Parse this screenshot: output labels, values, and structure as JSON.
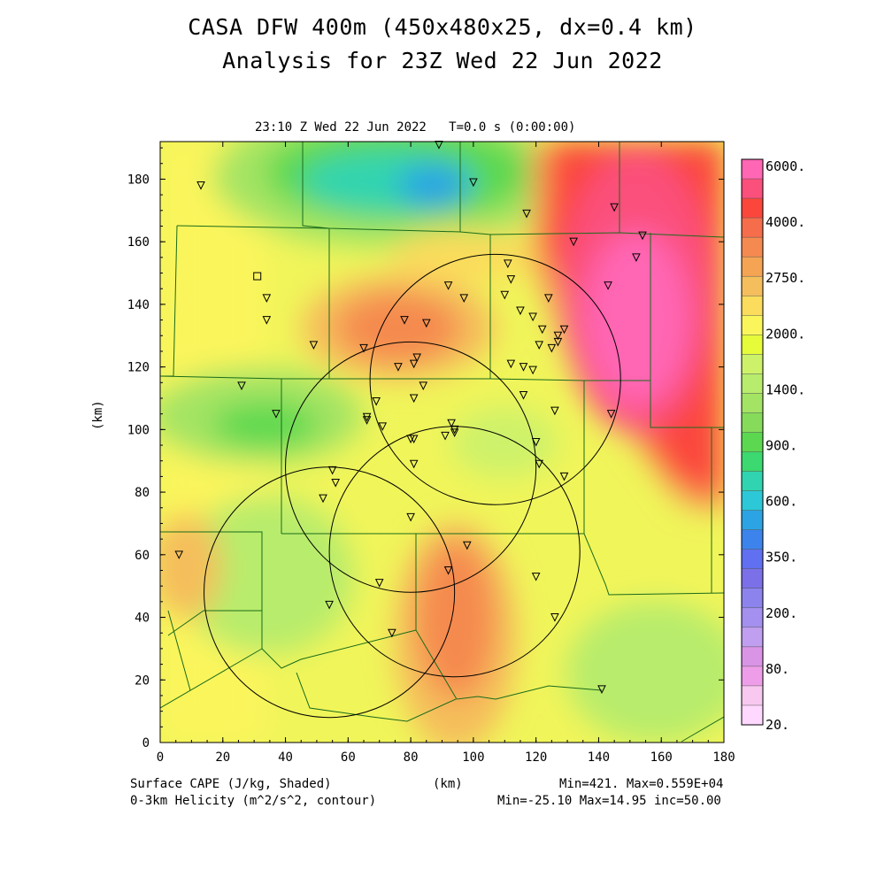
{
  "header": {
    "title_line1": "CASA DFW 400m (450x480x25, dx=0.4 km)",
    "title_line2": "Analysis for 23Z Wed 22 Jun 2022",
    "subtitle": "23:10 Z Wed 22 Jun 2022   T=0.0 s (0:00:00)"
  },
  "axes": {
    "x_label": "(km)",
    "y_label": "(km)",
    "x_range": [
      0,
      180
    ],
    "y_range": [
      0,
      192
    ],
    "x_ticks": [
      "0",
      "20",
      "40",
      "60",
      "80",
      "100",
      "120",
      "140",
      "160",
      "180"
    ],
    "y_ticks": [
      "0",
      "20",
      "40",
      "60",
      "80",
      "100",
      "120",
      "140",
      "160",
      "180"
    ]
  },
  "footer": {
    "left_line1": "Surface CAPE (J/kg, Shaded)",
    "left_line2": "0-3km Helicity (m^2/s^2, contour)",
    "right_line1": "Min=421. Max=0.559E+04",
    "right_line2": "Min=-25.10 Max=14.95 inc=50.00"
  },
  "colorbar": {
    "labels": [
      "6000.",
      "4000.",
      "2750.",
      "2000.",
      "1400.",
      "900.",
      "600.",
      "350.",
      "200.",
      "80.",
      "20."
    ],
    "colors": [
      "#ff66b4",
      "#fb4f7c",
      "#fb463c",
      "#f56d4a",
      "#f58a50",
      "#f5a454",
      "#f5be5c",
      "#fbdc5c",
      "#fbf55c",
      "#e6fb3a",
      "#cdf26a",
      "#b8ec6c",
      "#a4e464",
      "#86dc5a",
      "#5cd850",
      "#3cd870",
      "#30d4b0",
      "#2cc8d8",
      "#2ca4e4",
      "#3c84ec",
      "#6070f0",
      "#7c70e8",
      "#8c84ec",
      "#a490ee",
      "#c09ef0",
      "#da94e6",
      "#ee9ee8",
      "#f8c8f0",
      "#ffd8ff"
    ]
  },
  "radar_circles_km": [
    {
      "cx": 107,
      "cy": 116,
      "r": 40
    },
    {
      "cx": 80,
      "cy": 88,
      "r": 40
    },
    {
      "cx": 94,
      "cy": 61,
      "r": 40
    },
    {
      "cx": 54,
      "cy": 48,
      "r": 40
    }
  ],
  "stations_km": [
    [
      13,
      178
    ],
    [
      89,
      191
    ],
    [
      100,
      179
    ],
    [
      117,
      169
    ],
    [
      145,
      171
    ],
    [
      154,
      162
    ],
    [
      132,
      160
    ],
    [
      152,
      155
    ],
    [
      111,
      153
    ],
    [
      112,
      148
    ],
    [
      92,
      146
    ],
    [
      97,
      142
    ],
    [
      110,
      143
    ],
    [
      124,
      142
    ],
    [
      143,
      146
    ],
    [
      34,
      142
    ],
    [
      34,
      135
    ],
    [
      49,
      127
    ],
    [
      78,
      135
    ],
    [
      85,
      134
    ],
    [
      115,
      138
    ],
    [
      119,
      136
    ],
    [
      122,
      132
    ],
    [
      127,
      130
    ],
    [
      129,
      132
    ],
    [
      121,
      127
    ],
    [
      125,
      126
    ],
    [
      127,
      128
    ],
    [
      65,
      126
    ],
    [
      82,
      123
    ],
    [
      81,
      121
    ],
    [
      76,
      120
    ],
    [
      112,
      121
    ],
    [
      116,
      120
    ],
    [
      119,
      119
    ],
    [
      26,
      114
    ],
    [
      84,
      114
    ],
    [
      81,
      110
    ],
    [
      69,
      109
    ],
    [
      116,
      111
    ],
    [
      126,
      106
    ],
    [
      144,
      105
    ],
    [
      37,
      105
    ],
    [
      66,
      104
    ],
    [
      66,
      103
    ],
    [
      71,
      101
    ],
    [
      93,
      102
    ],
    [
      94,
      100
    ],
    [
      91,
      98
    ],
    [
      80,
      97
    ],
    [
      81,
      97
    ],
    [
      120,
      96
    ],
    [
      94,
      99
    ],
    [
      81,
      89
    ],
    [
      121,
      89
    ],
    [
      129,
      85
    ],
    [
      55,
      87
    ],
    [
      56,
      83
    ],
    [
      52,
      78
    ],
    [
      80,
      72
    ],
    [
      98,
      63
    ],
    [
      6,
      60
    ],
    [
      92,
      55
    ],
    [
      120,
      53
    ],
    [
      70,
      51
    ],
    [
      54,
      44
    ],
    [
      126,
      40
    ],
    [
      74,
      35
    ],
    [
      141,
      17
    ]
  ],
  "square_marker_km": [
    31,
    149
  ]
}
